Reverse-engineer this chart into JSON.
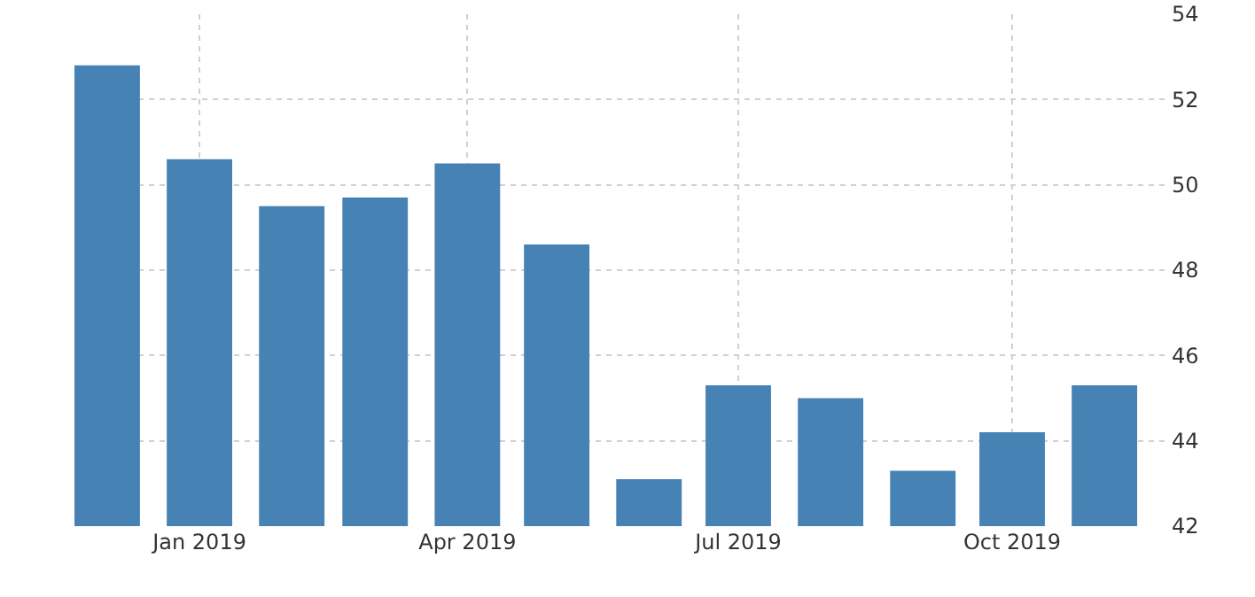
{
  "chart_data": {
    "type": "bar",
    "x": [
      "2018-12",
      "2019-01",
      "2019-02",
      "2019-03",
      "2019-04",
      "2019-05",
      "2019-06",
      "2019-07",
      "2019-08",
      "2019-09",
      "2019-10",
      "2019-11"
    ],
    "values": [
      52.8,
      50.6,
      49.5,
      49.7,
      50.5,
      48.6,
      43.1,
      45.3,
      45.0,
      43.3,
      44.2,
      45.3
    ],
    "color": "#4682b4",
    "xlim": [
      "2018-11-20",
      "2019-11-23"
    ],
    "xticks": [
      {
        "value": "2019-01",
        "label": "Jan 2019"
      },
      {
        "value": "2019-04",
        "label": "Apr 2019"
      },
      {
        "value": "2019-07",
        "label": "Jul 2019"
      },
      {
        "value": "2019-10",
        "label": "Oct 2019"
      }
    ],
    "ylim": [
      42,
      54
    ],
    "yticks": [
      42,
      44,
      46,
      48,
      50,
      52,
      54
    ],
    "grid": true,
    "legend": false
  }
}
